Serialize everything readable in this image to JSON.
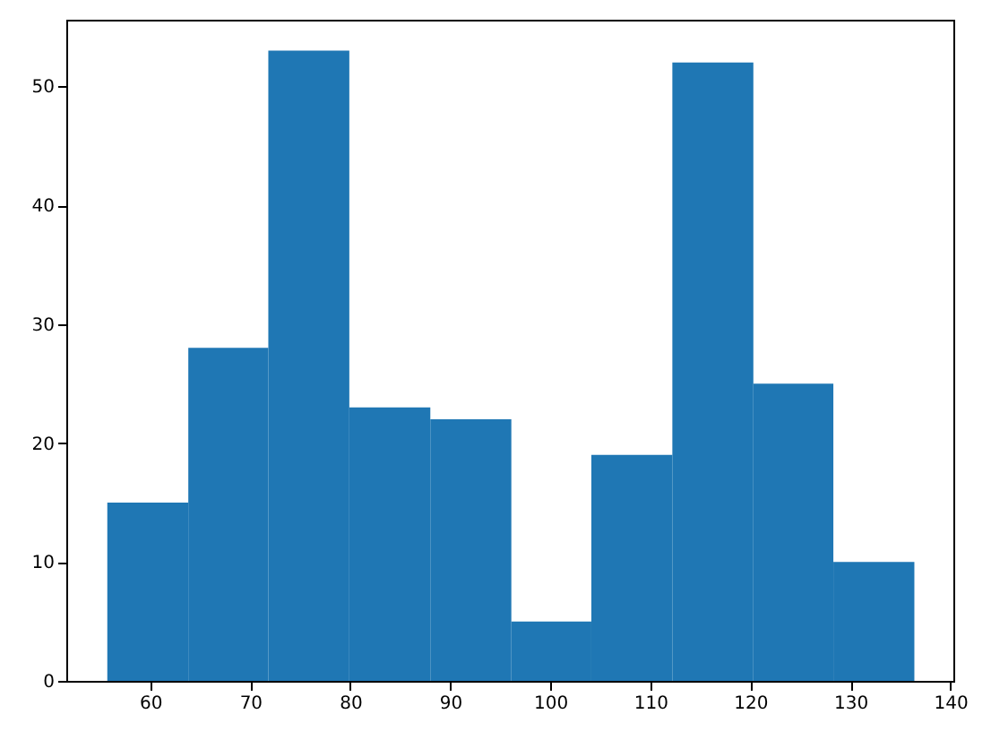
{
  "chart_data": {
    "type": "histogram",
    "bins": [
      55.7,
      63.8,
      71.8,
      79.9,
      88.0,
      96.1,
      104.1,
      112.2,
      120.3,
      128.3,
      136.4
    ],
    "values": [
      15,
      28,
      53,
      23,
      22,
      5,
      19,
      52,
      25,
      10
    ],
    "color": "#1f77b4",
    "xlim": [
      51.6,
      140.3
    ],
    "xticks": [
      60,
      70,
      80,
      90,
      100,
      110,
      120,
      130,
      140
    ],
    "ylim": [
      0,
      55.6
    ],
    "yticks": [
      0,
      10,
      20,
      30,
      40,
      50
    ],
    "grid": false
  }
}
